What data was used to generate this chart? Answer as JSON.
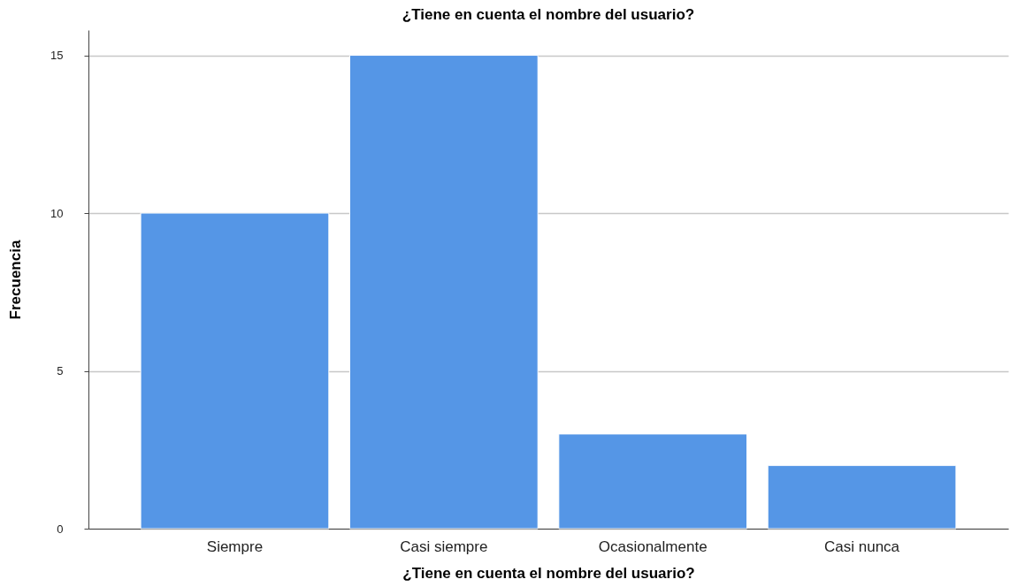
{
  "chart_data": {
    "type": "bar",
    "title": "¿Tiene en cuenta el nombre del usuario?",
    "xlabel": "¿Tiene en cuenta el nombre del usuario?",
    "ylabel": "Frecuencia",
    "categories": [
      "Siempre",
      "Casi siempre",
      "Ocasionalmente",
      "Casi nunca"
    ],
    "values": [
      10,
      15,
      3,
      2
    ],
    "color": "#5596e6",
    "ylim": [
      0,
      15.8
    ],
    "yticks": [
      0,
      5,
      10,
      15
    ],
    "grid": "y"
  }
}
